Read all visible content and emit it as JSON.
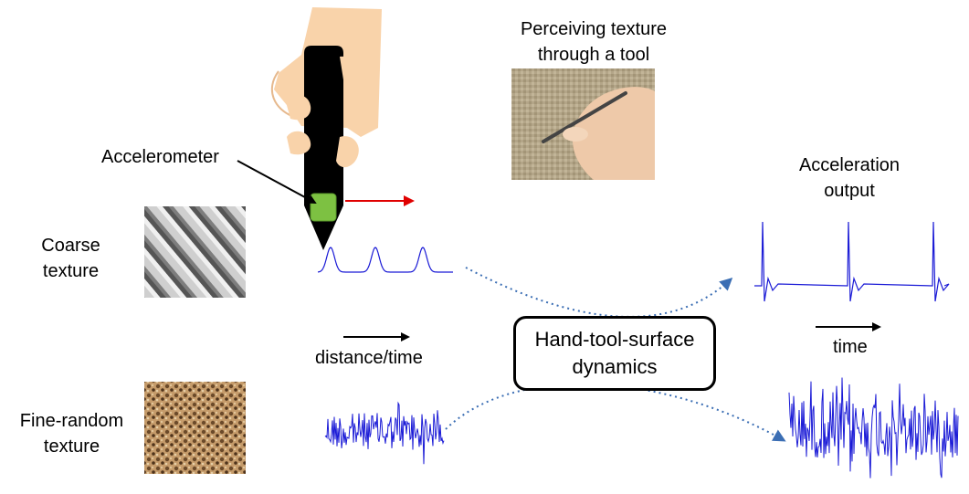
{
  "labels": {
    "perceiving_line1": "Perceiving texture",
    "perceiving_line2": "through a tool",
    "acceleration_line1": "Acceleration",
    "acceleration_line2": "output",
    "accelerometer": "Accelerometer",
    "coarse_line1": "Coarse",
    "coarse_line2": "texture",
    "fine_line1": "Fine-random",
    "fine_line2": "texture",
    "distance_time": "distance/time",
    "time": "time",
    "dynamics_line1": "Hand-tool-surface",
    "dynamics_line2": "dynamics"
  },
  "colors": {
    "signal": "#1a1ad6",
    "dotted_arrow": "#3b6eb4",
    "velocity_arrow": "#e00000",
    "sensor": "#7dc142",
    "tool": "#000000",
    "hand": "#f9d3aa"
  }
}
